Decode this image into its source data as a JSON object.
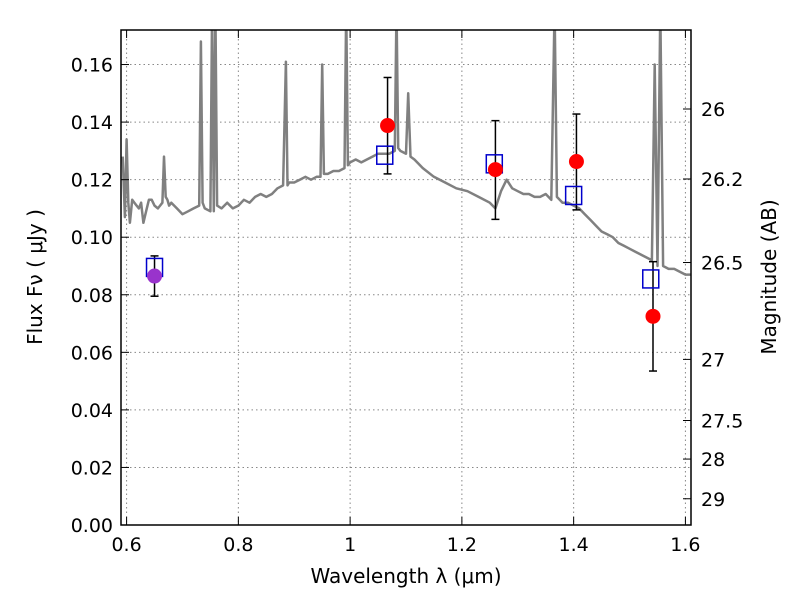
{
  "chart_data": {
    "type": "scatter",
    "xlabel": "Wavelength  λ (μm)",
    "ylabel": "Flux  Fν  ( μJy )",
    "y2label": "Magnitude (AB)",
    "xlim": [
      0.59,
      1.61
    ],
    "ylim": [
      0.0,
      0.172
    ],
    "grid": true,
    "x_ticks": [
      {
        "value": 0.6,
        "label": "0.6"
      },
      {
        "value": 0.8,
        "label": "0.8"
      },
      {
        "value": 1.0,
        "label": "1"
      },
      {
        "value": 1.2,
        "label": "1.2"
      },
      {
        "value": 1.4,
        "label": "1.4"
      },
      {
        "value": 1.6,
        "label": "1.6"
      }
    ],
    "y_ticks": [
      {
        "value": 0.0,
        "label": "0.00"
      },
      {
        "value": 0.02,
        "label": "0.02"
      },
      {
        "value": 0.04,
        "label": "0.04"
      },
      {
        "value": 0.06,
        "label": "0.06"
      },
      {
        "value": 0.08,
        "label": "0.08"
      },
      {
        "value": 0.1,
        "label": "0.10"
      },
      {
        "value": 0.12,
        "label": "0.12"
      },
      {
        "value": 0.14,
        "label": "0.14"
      },
      {
        "value": 0.16,
        "label": "0.16"
      }
    ],
    "y2_ticks": [
      {
        "value": 26.0,
        "label": "26"
      },
      {
        "value": 26.2,
        "label": "26.2"
      },
      {
        "value": 26.5,
        "label": "26.5"
      },
      {
        "value": 27.0,
        "label": "27"
      },
      {
        "value": 27.5,
        "label": "27.5"
      },
      {
        "value": 28.0,
        "label": "28"
      },
      {
        "value": 29.0,
        "label": "29"
      }
    ],
    "series": [
      {
        "kind": "spectrum-line",
        "color": "#808080",
        "x": [
          0.593,
          0.597,
          0.6,
          0.603,
          0.606,
          0.61,
          0.614,
          0.618,
          0.622,
          0.626,
          0.63,
          0.635,
          0.64,
          0.645,
          0.65,
          0.656,
          0.66,
          0.664,
          0.667,
          0.67,
          0.673,
          0.676,
          0.68,
          0.69,
          0.7,
          0.71,
          0.72,
          0.73,
          0.733,
          0.736,
          0.74,
          0.75,
          0.753,
          0.756,
          0.759,
          0.762,
          0.77,
          0.78,
          0.79,
          0.8,
          0.81,
          0.82,
          0.83,
          0.84,
          0.85,
          0.86,
          0.87,
          0.88,
          0.885,
          0.888,
          0.891,
          0.9,
          0.91,
          0.92,
          0.93,
          0.94,
          0.947,
          0.95,
          0.953,
          0.96,
          0.97,
          0.98,
          0.99,
          0.993,
          0.996,
          1.0,
          1.01,
          1.02,
          1.03,
          1.04,
          1.05,
          1.06,
          1.07,
          1.08,
          1.083,
          1.086,
          1.09,
          1.1,
          1.104,
          1.108,
          1.115,
          1.13,
          1.15,
          1.17,
          1.19,
          1.21,
          1.23,
          1.25,
          1.26,
          1.27,
          1.28,
          1.29,
          1.3,
          1.31,
          1.32,
          1.33,
          1.34,
          1.35,
          1.36,
          1.366,
          1.37,
          1.375,
          1.38,
          1.39,
          1.4,
          1.41,
          1.42,
          1.43,
          1.44,
          1.45,
          1.46,
          1.47,
          1.48,
          1.49,
          1.5,
          1.51,
          1.52,
          1.53,
          1.54,
          1.545,
          1.55,
          1.555,
          1.56,
          1.57,
          1.58,
          1.59,
          1.6,
          1.61
        ],
        "y": [
          0.128,
          0.107,
          0.134,
          0.112,
          0.105,
          0.113,
          0.112,
          0.111,
          0.11,
          0.112,
          0.105,
          0.109,
          0.113,
          0.113,
          0.111,
          0.11,
          0.111,
          0.112,
          0.128,
          0.114,
          0.113,
          0.111,
          0.112,
          0.11,
          0.108,
          0.109,
          0.11,
          0.111,
          0.168,
          0.112,
          0.11,
          0.109,
          0.18,
          0.109,
          0.18,
          0.111,
          0.11,
          0.112,
          0.11,
          0.111,
          0.113,
          0.112,
          0.114,
          0.115,
          0.114,
          0.115,
          0.117,
          0.118,
          0.161,
          0.118,
          0.119,
          0.119,
          0.12,
          0.121,
          0.12,
          0.121,
          0.121,
          0.16,
          0.122,
          0.122,
          0.123,
          0.123,
          0.124,
          0.18,
          0.125,
          0.126,
          0.127,
          0.126,
          0.127,
          0.128,
          0.129,
          0.129,
          0.129,
          0.13,
          0.18,
          0.131,
          0.13,
          0.129,
          0.15,
          0.128,
          0.127,
          0.124,
          0.121,
          0.119,
          0.117,
          0.116,
          0.114,
          0.112,
          0.11,
          0.116,
          0.12,
          0.117,
          0.116,
          0.115,
          0.115,
          0.114,
          0.114,
          0.115,
          0.113,
          0.18,
          0.114,
          0.113,
          0.112,
          0.112,
          0.111,
          0.11,
          0.108,
          0.106,
          0.104,
          0.102,
          0.101,
          0.1,
          0.098,
          0.097,
          0.096,
          0.095,
          0.094,
          0.093,
          0.092,
          0.16,
          0.09,
          0.18,
          0.09,
          0.089,
          0.089,
          0.088,
          0.087,
          0.087
        ]
      },
      {
        "kind": "observed",
        "color": "#ff0000",
        "points": [
          {
            "x": 0.65,
            "y": 0.0865,
            "yerr_lo": 0.0795,
            "yerr_hi": 0.0935
          },
          {
            "x": 1.067,
            "y": 0.1388,
            "yerr_lo": 0.122,
            "yerr_hi": 0.1555
          },
          {
            "x": 1.26,
            "y": 0.1235,
            "yerr_lo": 0.1062,
            "yerr_hi": 0.1405
          },
          {
            "x": 1.405,
            "y": 0.1263,
            "yerr_lo": 0.1095,
            "yerr_hi": 0.1428
          },
          {
            "x": 1.542,
            "y": 0.0725,
            "yerr_lo": 0.0535,
            "yerr_hi": 0.0915
          }
        ]
      },
      {
        "kind": "model-boxes",
        "color": "#0000cc",
        "points": [
          {
            "x": 0.65,
            "y": 0.0895
          },
          {
            "x": 1.062,
            "y": 0.1285
          },
          {
            "x": 1.258,
            "y": 0.1255
          },
          {
            "x": 1.4,
            "y": 0.1145
          },
          {
            "x": 1.538,
            "y": 0.0855
          }
        ]
      }
    ]
  },
  "colors": {
    "filter_overlap_point": "#9933cc",
    "errorbar": "#000000",
    "grid": "#888888"
  }
}
